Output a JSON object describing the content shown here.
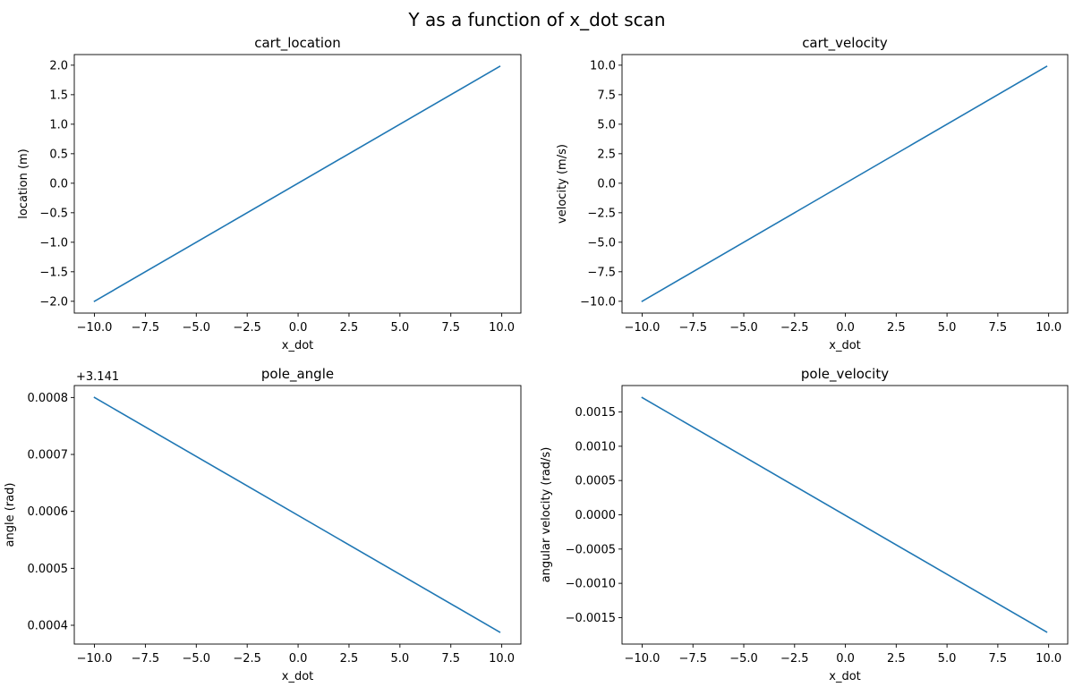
{
  "figure": {
    "title": "Y as a function of x_dot scan"
  },
  "chart_data": [
    {
      "type": "line",
      "title": "cart_location",
      "xlabel": "x_dot",
      "ylabel": "location (m)",
      "xlim": [
        -10.99,
        10.94
      ],
      "ylim": [
        -2.2,
        2.18
      ],
      "xticks": [
        -10,
        -7.5,
        -5,
        -2.5,
        0,
        2.5,
        5,
        7.5,
        10
      ],
      "xtick_labels": [
        "−10.0",
        "−7.5",
        "−5.0",
        "−2.5",
        "0.0",
        "2.5",
        "5.0",
        "7.5",
        "10.0"
      ],
      "yticks": [
        -2,
        -1.5,
        -1,
        -0.5,
        0,
        0.5,
        1,
        1.5,
        2
      ],
      "ytick_labels": [
        "−2.0",
        "−1.5",
        "−1.0",
        "−0.5",
        "0.0",
        "0.5",
        "1.0",
        "1.5",
        "2.0"
      ],
      "offset_text": "",
      "series": [
        {
          "color": "#1f77b4",
          "x": [
            -10,
            9.9
          ],
          "y": [
            -2.0,
            1.98
          ]
        }
      ]
    },
    {
      "type": "line",
      "title": "cart_velocity",
      "xlabel": "x_dot",
      "ylabel": "velocity (m/s)",
      "xlim": [
        -10.99,
        10.94
      ],
      "ylim": [
        -11.0,
        10.9
      ],
      "xticks": [
        -10,
        -7.5,
        -5,
        -2.5,
        0,
        2.5,
        5,
        7.5,
        10
      ],
      "xtick_labels": [
        "−10.0",
        "−7.5",
        "−5.0",
        "−2.5",
        "0.0",
        "2.5",
        "5.0",
        "7.5",
        "10.0"
      ],
      "yticks": [
        -10,
        -7.5,
        -5,
        -2.5,
        0,
        2.5,
        5,
        7.5,
        10
      ],
      "ytick_labels": [
        "−10.0",
        "−7.5",
        "−5.0",
        "−2.5",
        "0.0",
        "2.5",
        "5.0",
        "7.5",
        "10.0"
      ],
      "offset_text": "",
      "series": [
        {
          "color": "#1f77b4",
          "x": [
            -10,
            9.9
          ],
          "y": [
            -10.0,
            9.9
          ]
        }
      ]
    },
    {
      "type": "line",
      "title": "pole_angle",
      "xlabel": "x_dot",
      "ylabel": "angle (rad)",
      "xlim": [
        -10.99,
        10.94
      ],
      "ylim": [
        0.000367,
        0.000821
      ],
      "xticks": [
        -10,
        -7.5,
        -5,
        -2.5,
        0,
        2.5,
        5,
        7.5,
        10
      ],
      "xtick_labels": [
        "−10.0",
        "−7.5",
        "−5.0",
        "−2.5",
        "0.0",
        "2.5",
        "5.0",
        "7.5",
        "10.0"
      ],
      "yticks": [
        0.0004,
        0.0005,
        0.0006,
        0.0007,
        0.0008
      ],
      "ytick_labels": [
        "0.0004",
        "0.0005",
        "0.0006",
        "0.0007",
        "0.0008"
      ],
      "offset_text": "+3.141",
      "series": [
        {
          "color": "#1f77b4",
          "x": [
            -10,
            9.9
          ],
          "y": [
            0.0008,
            0.000388
          ]
        }
      ]
    },
    {
      "type": "line",
      "title": "pole_velocity",
      "xlabel": "x_dot",
      "ylabel": "angular velocity (rad/s)",
      "xlim": [
        -10.99,
        10.94
      ],
      "ylim": [
        -0.001886,
        0.001886
      ],
      "xticks": [
        -10,
        -7.5,
        -5,
        -2.5,
        0,
        2.5,
        5,
        7.5,
        10
      ],
      "xtick_labels": [
        "−10.0",
        "−7.5",
        "−5.0",
        "−2.5",
        "0.0",
        "2.5",
        "5.0",
        "7.5",
        "10.0"
      ],
      "yticks": [
        -0.0015,
        -0.001,
        -0.0005,
        0,
        0.0005,
        0.001,
        0.0015
      ],
      "ytick_labels": [
        "−0.0015",
        "−0.0010",
        "−0.0005",
        "0.0000",
        "0.0005",
        "0.0010",
        "0.0015"
      ],
      "offset_text": "",
      "series": [
        {
          "color": "#1f77b4",
          "x": [
            -10,
            9.9
          ],
          "y": [
            0.00171,
            -0.00171
          ]
        }
      ]
    }
  ]
}
